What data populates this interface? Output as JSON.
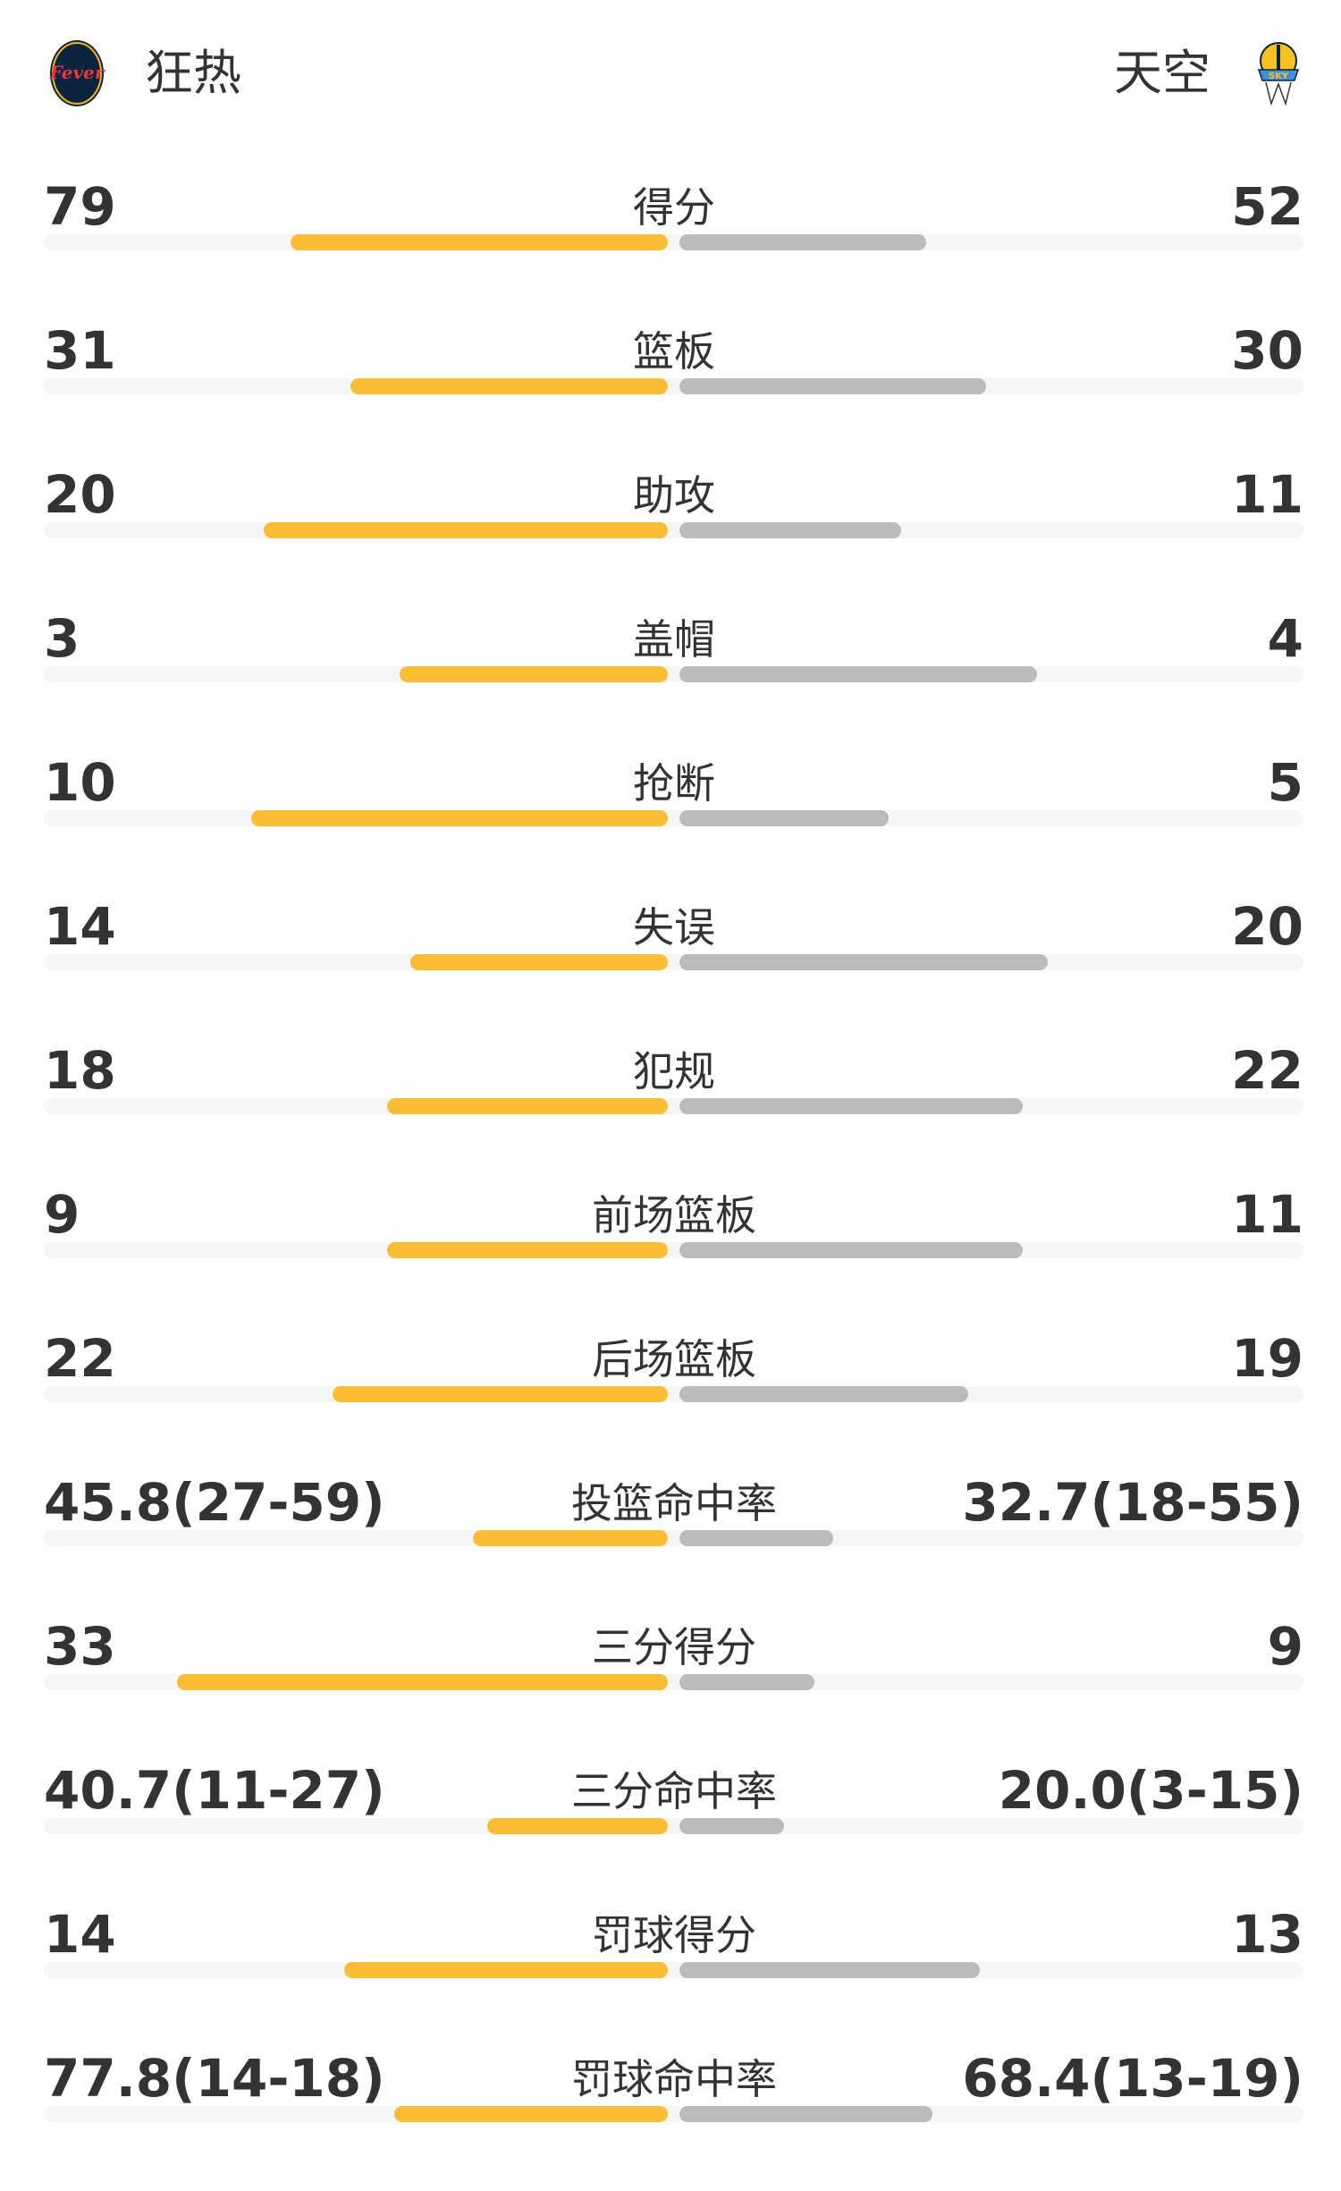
{
  "header": {
    "home": {
      "name": "狂热",
      "logo": "indiana-fever-logo",
      "logo_text": "INDIANA Fever"
    },
    "away": {
      "name": "天空",
      "logo": "chicago-sky-logo",
      "logo_text": "CHICAGO SKY"
    }
  },
  "colors": {
    "home_bar": "#fbbd33",
    "away_bar": "#bbbbbb",
    "track": "#f5f6f8"
  },
  "stats": [
    {
      "label": "得分",
      "home": "79",
      "away": "52",
      "home_fill": 0.604,
      "away_fill": 0.396
    },
    {
      "label": "篮板",
      "home": "31",
      "away": "30",
      "home_fill": 0.509,
      "away_fill": 0.491
    },
    {
      "label": "助攻",
      "home": "20",
      "away": "11",
      "home_fill": 0.648,
      "away_fill": 0.355
    },
    {
      "label": "盖帽",
      "home": "3",
      "away": "4",
      "home_fill": 0.43,
      "away_fill": 0.573
    },
    {
      "label": "抢断",
      "home": "10",
      "away": "5",
      "home_fill": 0.667,
      "away_fill": 0.335
    },
    {
      "label": "失误",
      "home": "14",
      "away": "20",
      "home_fill": 0.412,
      "away_fill": 0.59
    },
    {
      "label": "犯规",
      "home": "18",
      "away": "22",
      "home_fill": 0.45,
      "away_fill": 0.55
    },
    {
      "label": "前场篮板",
      "home": "9",
      "away": "11",
      "home_fill": 0.45,
      "away_fill": 0.55
    },
    {
      "label": "后场篮板",
      "home": "22",
      "away": "19",
      "home_fill": 0.537,
      "away_fill": 0.463
    },
    {
      "label": "投篮命中率",
      "home": "45.8(27-59)",
      "away": "32.7(18-55)",
      "home_fill": 0.313,
      "away_fill": 0.247
    },
    {
      "label": "三分得分",
      "home": "33",
      "away": "9",
      "home_fill": 0.786,
      "away_fill": 0.216
    },
    {
      "label": "三分命中率",
      "home": "40.7(11-27)",
      "away": "20.0(3-15)",
      "home_fill": 0.29,
      "away_fill": 0.167
    },
    {
      "label": "罚球得分",
      "home": "14",
      "away": "13",
      "home_fill": 0.518,
      "away_fill": 0.482
    },
    {
      "label": "罚球命中率",
      "home": "77.8(14-18)",
      "away": "68.4(13-19)",
      "home_fill": 0.438,
      "away_fill": 0.405
    }
  ]
}
